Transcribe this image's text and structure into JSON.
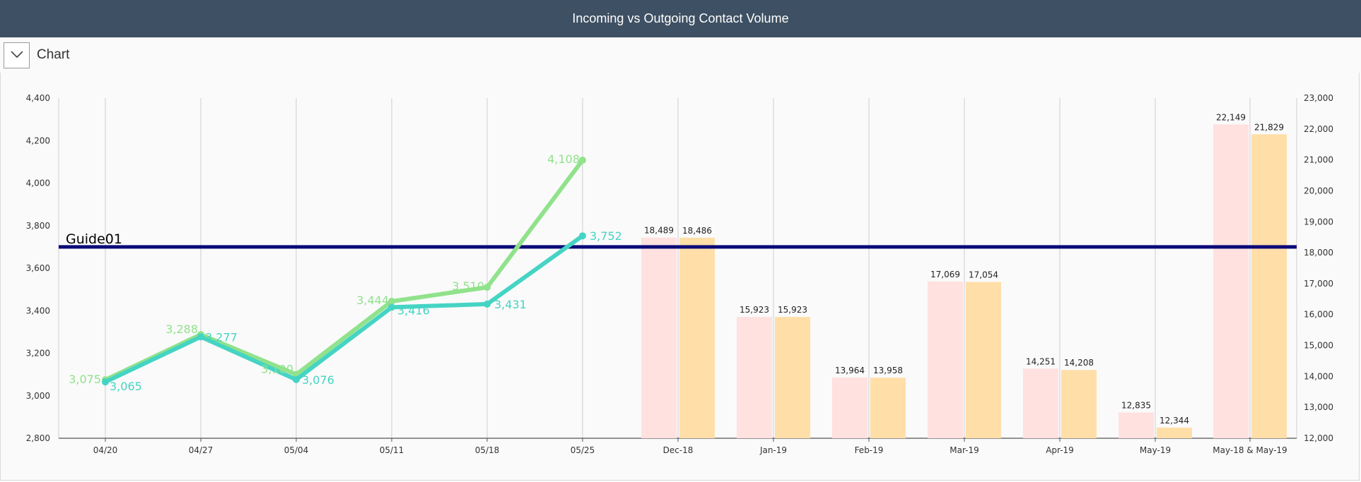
{
  "header": {
    "title": "Incoming vs Outgoing Contact Volume"
  },
  "toolbar": {
    "label": "Chart",
    "toggle_icon": "chevron-down-icon"
  },
  "colors": {
    "header_bg": "#3e5063",
    "line_incoming": "#90e28b",
    "line_outgoing": "#45d4c4",
    "bar_incoming": "#ffe1df",
    "bar_outgoing": "#ffdea8",
    "guide": "#0a0a78"
  },
  "chart_data": {
    "type": "bar",
    "categories": [
      "04/20",
      "04/27",
      "05/04",
      "05/11",
      "05/18",
      "05/25",
      "Dec-18",
      "Jan-19",
      "Feb-19",
      "Mar-19",
      "Apr-19",
      "May-19",
      "May-18 & May-19"
    ],
    "left_axis": {
      "ylim": [
        2800,
        4400
      ],
      "ticks": [
        "2,800",
        "3,000",
        "3,200",
        "3,400",
        "3,600",
        "3,800",
        "4,000",
        "4,200",
        "4,400"
      ]
    },
    "right_axis": {
      "ylim": [
        12000,
        23000
      ],
      "ticks": [
        "12,000",
        "13,000",
        "14,000",
        "15,000",
        "16,000",
        "17,000",
        "18,000",
        "19,000",
        "20,000",
        "21,000",
        "22,000",
        "23,000"
      ]
    },
    "line_series": [
      {
        "type": "line",
        "axis": "left",
        "values": [
          3075,
          3288,
          3100,
          3444,
          3510,
          4108
        ],
        "labels": [
          "3,075",
          "3,288",
          "3,100",
          "3,444",
          "3,510",
          "4,108"
        ]
      },
      {
        "type": "line",
        "axis": "left",
        "values": [
          3065,
          3277,
          3076,
          3416,
          3431,
          3752
        ],
        "labels": [
          "3,065",
          "3,277",
          "3,076",
          "3,416",
          "3,431",
          "3,752"
        ]
      }
    ],
    "bar_series": [
      {
        "type": "bar",
        "axis": "right",
        "values": [
          18489,
          15923,
          13964,
          17069,
          14251,
          12835,
          22149
        ],
        "labels": [
          "18,489",
          "15,923",
          "13,964",
          "17,069",
          "14,251",
          "12,835",
          "22,149"
        ]
      },
      {
        "type": "bar",
        "axis": "right",
        "values": [
          18486,
          15923,
          13958,
          17054,
          14208,
          12344,
          21829
        ],
        "labels": [
          "18,486",
          "15,923",
          "13,958",
          "17,054",
          "14,208",
          "12,344",
          "21,829"
        ]
      }
    ],
    "guide_line": {
      "label": "Guide01",
      "value": 3700,
      "axis": "left"
    },
    "grid": "vertical"
  }
}
